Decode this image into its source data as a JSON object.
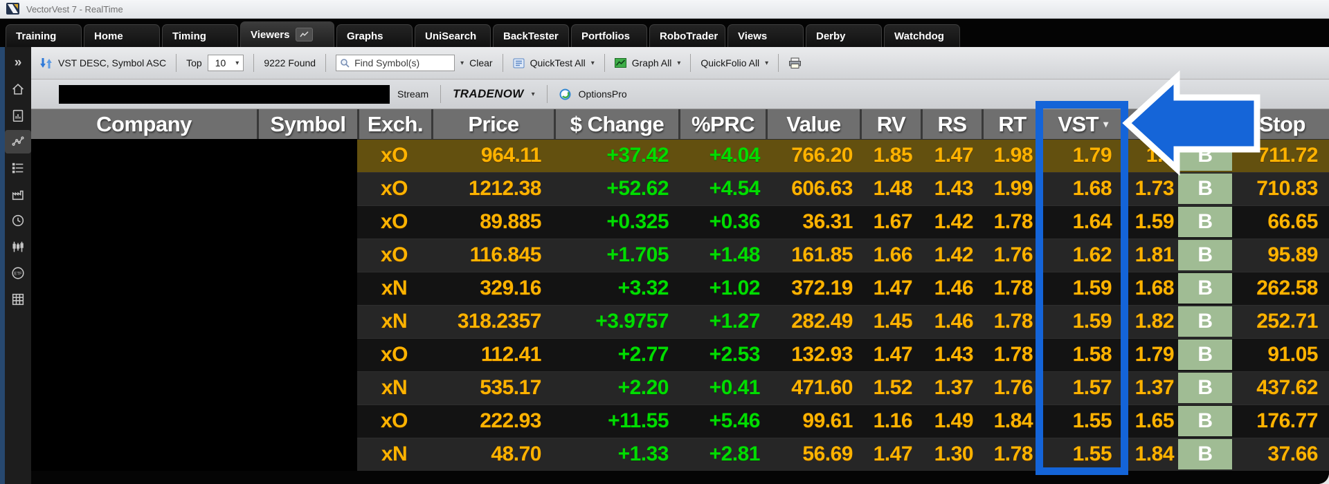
{
  "window": {
    "title": "VectorVest 7 - RealTime"
  },
  "tabs": [
    {
      "label": "Training",
      "active": false
    },
    {
      "label": "Home",
      "active": false
    },
    {
      "label": "Timing",
      "active": false
    },
    {
      "label": "Viewers",
      "active": true
    },
    {
      "label": "Graphs",
      "active": false
    },
    {
      "label": "UniSearch",
      "active": false
    },
    {
      "label": "BackTester",
      "active": false
    },
    {
      "label": "Portfolios",
      "active": false
    },
    {
      "label": "RoboTrader",
      "active": false
    },
    {
      "label": "Views",
      "active": false
    },
    {
      "label": "Derby",
      "active": false
    },
    {
      "label": "Watchdog",
      "active": false
    }
  ],
  "toolbar": {
    "sort_status": "VST DESC, Symbol ASC",
    "top_label": "Top",
    "top_value": "10",
    "found_count": "9222 Found",
    "find_placeholder": "Find Symbol(s)",
    "clear_label": "Clear",
    "quicktest_label": "QuickTest All",
    "graph_label": "Graph All",
    "quickfolio_label": "QuickFolio All"
  },
  "subtoolbar": {
    "stream_label": "Stream",
    "tradenow_label": "TRADENOW",
    "optionspro_label": "OptionsPro"
  },
  "table": {
    "col_keys": [
      "company",
      "symbol",
      "exch",
      "price",
      "change",
      "prc",
      "value",
      "rv",
      "rs",
      "rt",
      "vst",
      "ci",
      "rec",
      "stop"
    ],
    "columns": [
      "Company",
      "Symbol",
      "Exch.",
      "Price",
      "$ Change",
      "%PRC",
      "Value",
      "RV",
      "RS",
      "RT",
      "VST",
      "",
      "",
      "Stop"
    ],
    "sorted_column": "VST",
    "sort_indicator": "▾",
    "rows": [
      {
        "company": "",
        "symbol": "",
        "exch": "xO",
        "price": "964.11",
        "change": "+37.42",
        "prc": "+4.04",
        "value": "766.20",
        "rv": "1.85",
        "rs": "1.47",
        "rt": "1.98",
        "vst": "1.79",
        "ci": "1.8",
        "rec": "B",
        "stop": "711.72",
        "selected": true
      },
      {
        "company": "",
        "symbol": "",
        "exch": "xO",
        "price": "1212.38",
        "change": "+52.62",
        "prc": "+4.54",
        "value": "606.63",
        "rv": "1.48",
        "rs": "1.43",
        "rt": "1.99",
        "vst": "1.68",
        "ci": "1.73",
        "rec": "B",
        "stop": "710.83",
        "selected": false
      },
      {
        "company": "",
        "symbol": "",
        "exch": "xO",
        "price": "89.885",
        "change": "+0.325",
        "prc": "+0.36",
        "value": "36.31",
        "rv": "1.67",
        "rs": "1.42",
        "rt": "1.78",
        "vst": "1.64",
        "ci": "1.59",
        "rec": "B",
        "stop": "66.65",
        "selected": false
      },
      {
        "company": "",
        "symbol": "",
        "exch": "xO",
        "price": "116.845",
        "change": "+1.705",
        "prc": "+1.48",
        "value": "161.85",
        "rv": "1.66",
        "rs": "1.42",
        "rt": "1.76",
        "vst": "1.62",
        "ci": "1.81",
        "rec": "B",
        "stop": "95.89",
        "selected": false
      },
      {
        "company": "",
        "symbol": "",
        "exch": "xN",
        "price": "329.16",
        "change": "+3.32",
        "prc": "+1.02",
        "value": "372.19",
        "rv": "1.47",
        "rs": "1.46",
        "rt": "1.78",
        "vst": "1.59",
        "ci": "1.68",
        "rec": "B",
        "stop": "262.58",
        "selected": false
      },
      {
        "company": "",
        "symbol": "",
        "exch": "xN",
        "price": "318.2357",
        "change": "+3.9757",
        "prc": "+1.27",
        "value": "282.49",
        "rv": "1.45",
        "rs": "1.46",
        "rt": "1.78",
        "vst": "1.59",
        "ci": "1.82",
        "rec": "B",
        "stop": "252.71",
        "selected": false
      },
      {
        "company": "",
        "symbol": "",
        "exch": "xO",
        "price": "112.41",
        "change": "+2.77",
        "prc": "+2.53",
        "value": "132.93",
        "rv": "1.47",
        "rs": "1.43",
        "rt": "1.78",
        "vst": "1.58",
        "ci": "1.79",
        "rec": "B",
        "stop": "91.05",
        "selected": false
      },
      {
        "company": "",
        "symbol": "",
        "exch": "xN",
        "price": "535.17",
        "change": "+2.20",
        "prc": "+0.41",
        "value": "471.60",
        "rv": "1.52",
        "rs": "1.37",
        "rt": "1.76",
        "vst": "1.57",
        "ci": "1.37",
        "rec": "B",
        "stop": "437.62",
        "selected": false
      },
      {
        "company": "",
        "symbol": "",
        "exch": "xO",
        "price": "222.93",
        "change": "+11.55",
        "prc": "+5.46",
        "value": "99.61",
        "rv": "1.16",
        "rs": "1.49",
        "rt": "1.84",
        "vst": "1.55",
        "ci": "1.65",
        "rec": "B",
        "stop": "176.77",
        "selected": false
      },
      {
        "company": "",
        "symbol": "",
        "exch": "xN",
        "price": "48.70",
        "change": "+1.33",
        "prc": "+2.81",
        "value": "56.69",
        "rv": "1.47",
        "rs": "1.30",
        "rt": "1.78",
        "vst": "1.55",
        "ci": "1.84",
        "rec": "B",
        "stop": "37.66",
        "selected": false
      }
    ]
  },
  "sidebar": {
    "icons": [
      "expand",
      "home",
      "report",
      "chart",
      "list",
      "industry",
      "clock",
      "candlestick",
      "etf",
      "spreadsheet"
    ],
    "active_icon": "chart"
  },
  "colors": {
    "accent_blue": "#1565d8",
    "amber": "#ffb300",
    "green": "#00dd00",
    "rec_green": "#a0bc94",
    "selected_row": "#63500f"
  }
}
